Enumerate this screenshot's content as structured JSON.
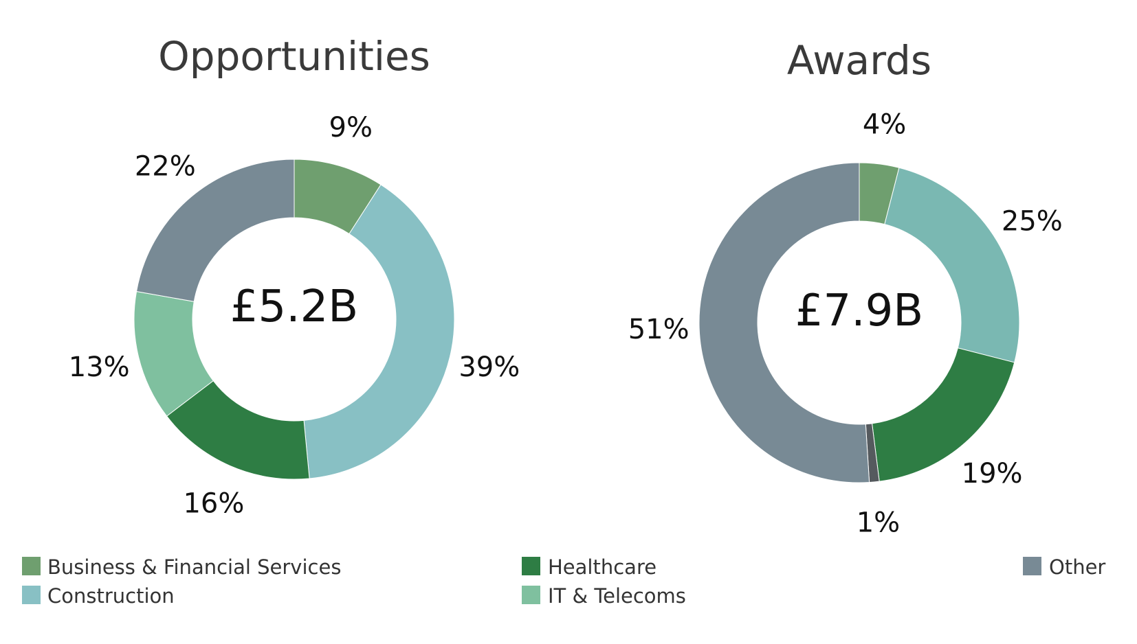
{
  "colors": {
    "business_financial": "#6f9f6f",
    "construction": "#88c0c4",
    "healthcare": "#2e7d44",
    "it_telecoms": "#7fc09f",
    "other": "#788a95",
    "awards_construction": "#7ab8b2",
    "awards_small": "#555a5e"
  },
  "chart_data": [
    {
      "type": "pie",
      "variant": "donut",
      "title": "Opportunities",
      "center_label": "£5.2B",
      "slices": [
        {
          "category": "Business & Financial Services",
          "value": 9,
          "label": "9%",
          "color": "#6f9f6f"
        },
        {
          "category": "Construction",
          "value": 39,
          "label": "39%",
          "color": "#88c0c4"
        },
        {
          "category": "Healthcare",
          "value": 16,
          "label": "16%",
          "color": "#2e7d44"
        },
        {
          "category": "IT & Telecoms",
          "value": 13,
          "label": "13%",
          "color": "#7fc09f"
        },
        {
          "category": "Other",
          "value": 22,
          "label": "22%",
          "color": "#788a95"
        }
      ]
    },
    {
      "type": "pie",
      "variant": "donut",
      "title": "Awards",
      "center_label": "£7.9B",
      "slices": [
        {
          "category": "Business & Financial Services",
          "value": 4,
          "label": "4%",
          "color": "#6f9f6f"
        },
        {
          "category": "Construction",
          "value": 25,
          "label": "25%",
          "color": "#7ab8b2"
        },
        {
          "category": "Healthcare",
          "value": 19,
          "label": "19%",
          "color": "#2e7d44"
        },
        {
          "category": "",
          "value": 1,
          "label": "1%",
          "color": "#555a5e"
        },
        {
          "category": "Other",
          "value": 51,
          "label": "51%",
          "color": "#788a95"
        }
      ]
    }
  ],
  "legend": [
    {
      "label": "Business & Financial Services",
      "color": "#6f9f6f"
    },
    {
      "label": "Construction",
      "color": "#88c0c4"
    },
    {
      "label": "Healthcare",
      "color": "#2e7d44"
    },
    {
      "label": "IT & Telecoms",
      "color": "#7fc09f"
    },
    {
      "label": "Other",
      "color": "#788a95"
    }
  ]
}
